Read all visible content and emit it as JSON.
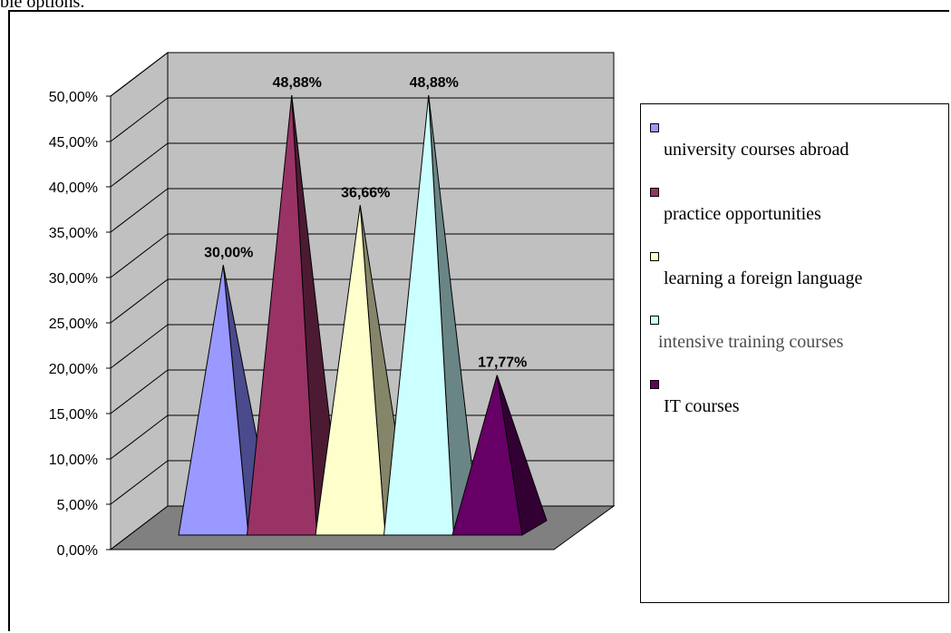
{
  "page": {
    "header_text": "ble options."
  },
  "chart_data": {
    "type": "bar",
    "bar_shape": "3d-pyramid",
    "categories": [
      "university courses abroad",
      "practice opportunities",
      "learning a foreign language",
      "intensive training courses",
      "IT courses"
    ],
    "values": [
      30.0,
      48.88,
      36.66,
      48.88,
      17.77
    ],
    "data_labels": [
      "30,00%",
      "48,88%",
      "36,66%",
      "48,88%",
      "17,77%"
    ],
    "colors": [
      "#9999ff",
      "#993366",
      "#ffffcc",
      "#ccffff",
      "#660066"
    ],
    "side_colors": [
      "#4a4a8c",
      "#4d1a33",
      "#85856a",
      "#6a8585",
      "#330033"
    ],
    "title": "",
    "xlabel": "",
    "ylabel": "",
    "ylim": [
      0,
      50
    ],
    "yticks": [
      0,
      5,
      10,
      15,
      20,
      25,
      30,
      35,
      40,
      45,
      50
    ],
    "ytick_labels": [
      "0,00%",
      "5,00%",
      "10,00%",
      "15,00%",
      "20,00%",
      "25,00%",
      "30,00%",
      "35,00%",
      "40,00%",
      "45,00%",
      "50,00%"
    ],
    "grid": true,
    "wall_color": "#c0c0c0",
    "floor_color": "#808080",
    "legend_position": "right"
  }
}
